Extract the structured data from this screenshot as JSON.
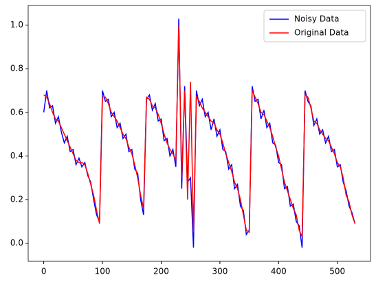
{
  "chart_data": {
    "type": "line",
    "x": [
      0,
      5,
      10,
      15,
      20,
      25,
      30,
      35,
      40,
      45,
      50,
      55,
      60,
      65,
      70,
      75,
      80,
      85,
      90,
      95,
      100,
      105,
      110,
      115,
      120,
      125,
      130,
      135,
      140,
      145,
      150,
      155,
      160,
      165,
      170,
      175,
      180,
      185,
      190,
      195,
      200,
      205,
      210,
      215,
      220,
      225,
      230,
      235,
      240,
      245,
      250,
      255,
      260,
      265,
      270,
      275,
      280,
      285,
      290,
      295,
      300,
      305,
      310,
      315,
      320,
      325,
      330,
      335,
      340,
      345,
      350,
      355,
      360,
      365,
      370,
      375,
      380,
      385,
      390,
      395,
      400,
      405,
      410,
      415,
      420,
      425,
      430,
      435,
      440,
      445,
      450,
      455,
      460,
      465,
      470,
      475,
      480,
      485,
      490,
      495,
      500,
      505,
      510,
      515,
      520,
      525,
      530
    ],
    "series": [
      {
        "name": "Noisy Data",
        "color": "#0000ff",
        "values": [
          0.6,
          0.7,
          0.62,
          0.63,
          0.55,
          0.58,
          0.51,
          0.46,
          0.49,
          0.42,
          0.43,
          0.36,
          0.39,
          0.35,
          0.37,
          0.31,
          0.28,
          0.2,
          0.13,
          0.1,
          0.7,
          0.65,
          0.66,
          0.58,
          0.6,
          0.53,
          0.55,
          0.48,
          0.5,
          0.42,
          0.43,
          0.34,
          0.32,
          0.2,
          0.13,
          0.66,
          0.68,
          0.61,
          0.64,
          0.56,
          0.57,
          0.47,
          0.48,
          0.4,
          0.43,
          0.35,
          1.03,
          0.25,
          0.72,
          0.28,
          0.3,
          -0.02,
          0.7,
          0.63,
          0.66,
          0.58,
          0.6,
          0.52,
          0.57,
          0.49,
          0.52,
          0.43,
          0.42,
          0.34,
          0.36,
          0.25,
          0.27,
          0.17,
          0.15,
          0.04,
          0.06,
          0.72,
          0.65,
          0.66,
          0.57,
          0.61,
          0.53,
          0.55,
          0.46,
          0.45,
          0.37,
          0.36,
          0.25,
          0.26,
          0.17,
          0.18,
          0.1,
          0.08,
          -0.02,
          0.7,
          0.65,
          0.63,
          0.54,
          0.57,
          0.5,
          0.52,
          0.46,
          0.49,
          0.42,
          0.43,
          0.35,
          0.36,
          0.28,
          0.24,
          0.17,
          0.14,
          0.09
        ]
      },
      {
        "name": "Original Data",
        "color": "#ff0000",
        "values": [
          0.68,
          0.67,
          0.64,
          0.6,
          0.57,
          0.56,
          0.53,
          0.5,
          0.47,
          0.44,
          0.41,
          0.38,
          0.37,
          0.37,
          0.36,
          0.32,
          0.27,
          0.22,
          0.15,
          0.09,
          0.67,
          0.67,
          0.64,
          0.6,
          0.58,
          0.56,
          0.53,
          0.5,
          0.48,
          0.44,
          0.41,
          0.36,
          0.3,
          0.22,
          0.16,
          0.67,
          0.66,
          0.63,
          0.62,
          0.59,
          0.55,
          0.5,
          0.46,
          0.43,
          0.41,
          0.38,
          1.0,
          0.3,
          0.7,
          0.2,
          0.74,
          0.05,
          0.67,
          0.65,
          0.62,
          0.6,
          0.58,
          0.56,
          0.55,
          0.52,
          0.5,
          0.46,
          0.41,
          0.37,
          0.33,
          0.28,
          0.25,
          0.2,
          0.13,
          0.06,
          0.05,
          0.7,
          0.67,
          0.64,
          0.6,
          0.59,
          0.56,
          0.53,
          0.49,
          0.44,
          0.4,
          0.34,
          0.28,
          0.24,
          0.2,
          0.16,
          0.13,
          0.06,
          0.03,
          0.68,
          0.67,
          0.62,
          0.56,
          0.55,
          0.52,
          0.5,
          0.48,
          0.47,
          0.44,
          0.41,
          0.37,
          0.35,
          0.3,
          0.22,
          0.19,
          0.13,
          0.09
        ]
      }
    ],
    "xlim": [
      -26.5,
      556.5
    ],
    "ylim": [
      -0.083,
      1.09
    ],
    "xticks": [
      0,
      100,
      200,
      300,
      400,
      500
    ],
    "yticks": [
      {
        "value": 0,
        "label": "0.0"
      },
      {
        "value": 0.2,
        "label": "0.2"
      },
      {
        "value": 0.4,
        "label": "0.4"
      },
      {
        "value": 0.6,
        "label": "0.6"
      },
      {
        "value": 0.8,
        "label": "0.8"
      },
      {
        "value": 1,
        "label": "1.0"
      }
    ],
    "legend": "upper right"
  }
}
